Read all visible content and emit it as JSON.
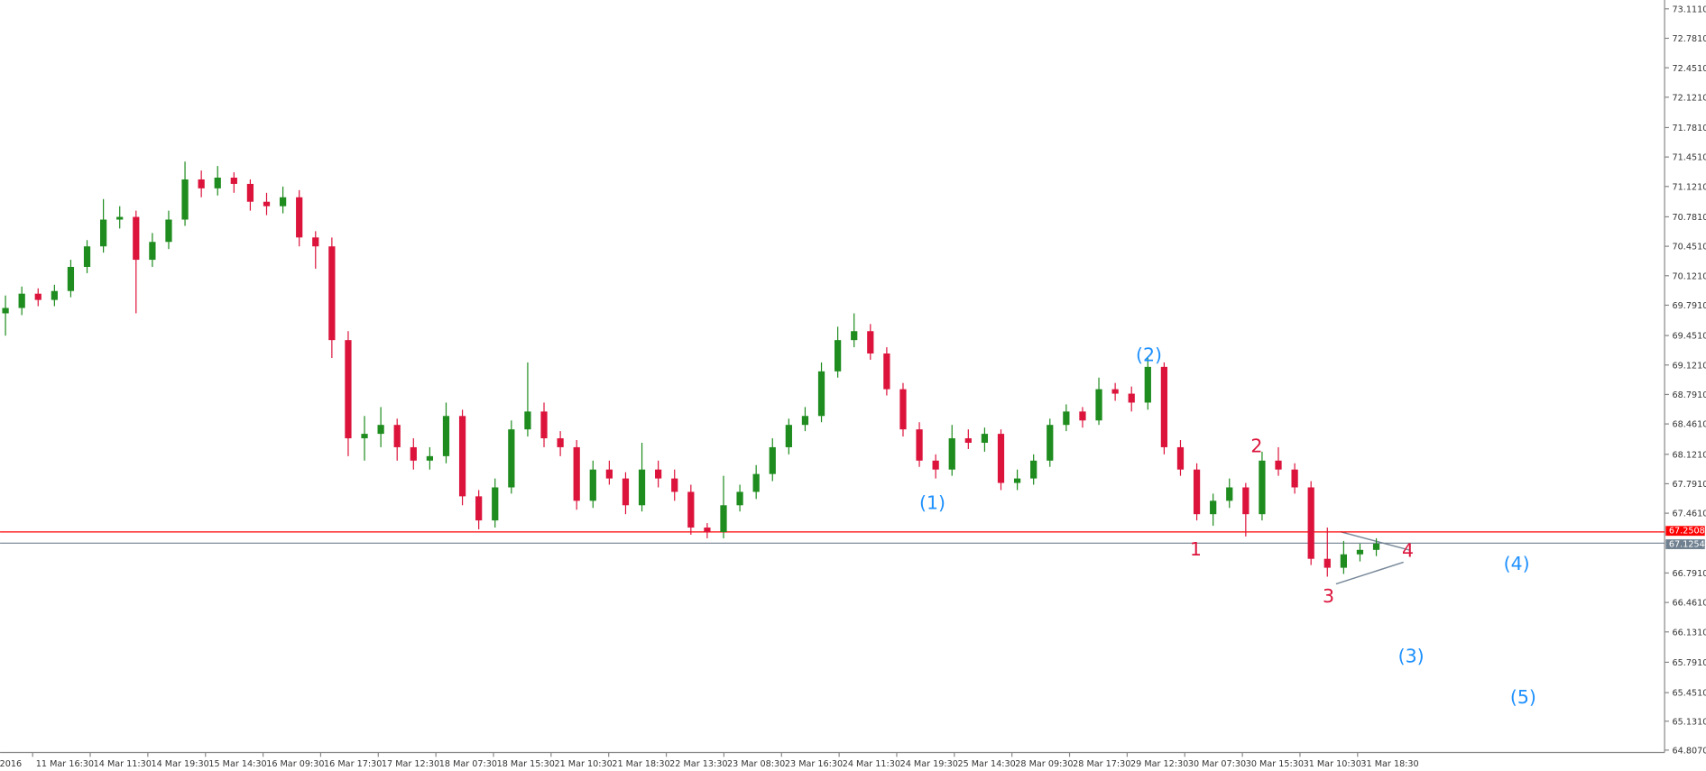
{
  "chart_data": {
    "type": "candlestick",
    "up_color": "#1e8c1e",
    "down_color": "#dc143c",
    "ylim": [
      64.78,
      73.21
    ],
    "yticks": [
      {
        "value": 73.111,
        "label": "73.1110"
      },
      {
        "value": 72.781,
        "label": "72.7810"
      },
      {
        "value": 72.451,
        "label": "72.4510"
      },
      {
        "value": 72.121,
        "label": "72.1210"
      },
      {
        "value": 71.781,
        "label": "71.7810"
      },
      {
        "value": 71.451,
        "label": "71.4510"
      },
      {
        "value": 71.121,
        "label": "71.1210"
      },
      {
        "value": 70.781,
        "label": "70.7810"
      },
      {
        "value": 70.451,
        "label": "70.4510"
      },
      {
        "value": 70.121,
        "label": "70.1210"
      },
      {
        "value": 69.791,
        "label": "69.7910"
      },
      {
        "value": 69.451,
        "label": "69.4510"
      },
      {
        "value": 69.121,
        "label": "69.1210"
      },
      {
        "value": 68.791,
        "label": "68.7910"
      },
      {
        "value": 68.461,
        "label": "68.4610"
      },
      {
        "value": 68.121,
        "label": "68.1210"
      },
      {
        "value": 67.791,
        "label": "67.7910"
      },
      {
        "value": 67.461,
        "label": "67.4610"
      },
      {
        "value": 66.791,
        "label": "66.7910"
      },
      {
        "value": 66.461,
        "label": "66.4610"
      },
      {
        "value": 66.131,
        "label": "66.1310"
      },
      {
        "value": 65.791,
        "label": "65.7910"
      },
      {
        "value": 65.451,
        "label": "65.4510"
      },
      {
        "value": 65.131,
        "label": "65.1310"
      },
      {
        "value": 64.807,
        "label": "64.8070"
      }
    ],
    "levels": [
      {
        "value": 67.2508,
        "color": "#ff0000"
      },
      {
        "value": 67.1254,
        "color": "#708090"
      }
    ],
    "x_labels": [
      "2016",
      "11 Mar 16:30",
      "14 Mar 11:30",
      "14 Mar 19:30",
      "15 Mar 14:30",
      "16 Mar 09:30",
      "16 Mar 17:30",
      "17 Mar 12:30",
      "18 Mar 07:30",
      "18 Mar 15:30",
      "21 Mar 10:30",
      "21 Mar 18:30",
      "22 Mar 13:30",
      "23 Mar 08:30",
      "23 Mar 16:30",
      "24 Mar 11:30",
      "24 Mar 19:30",
      "25 Mar 14:30",
      "28 Mar 09:30",
      "28 Mar 17:30",
      "29 Mar 12:30",
      "30 Mar 07:30",
      "30 Mar 15:30",
      "31 Mar 10:30",
      "31 Mar 18:30"
    ],
    "annotations": [
      {
        "text": "(1)",
        "color": "#1e90ff"
      },
      {
        "text": "(2)",
        "color": "#1e90ff"
      },
      {
        "text": "(3)",
        "color": "#1e90ff"
      },
      {
        "text": "(4)",
        "color": "#1e90ff"
      },
      {
        "text": "(5)",
        "color": "#1e90ff"
      },
      {
        "text": "1",
        "color": "#dc143c"
      },
      {
        "text": "2",
        "color": "#dc143c"
      },
      {
        "text": "3",
        "color": "#dc143c"
      },
      {
        "text": "4",
        "color": "#dc143c"
      }
    ],
    "candles": [
      [
        69.7,
        69.9,
        69.45,
        69.76
      ],
      [
        69.76,
        70.0,
        69.68,
        69.92
      ],
      [
        69.92,
        69.98,
        69.78,
        69.85
      ],
      [
        69.85,
        70.02,
        69.78,
        69.95
      ],
      [
        69.95,
        70.3,
        69.88,
        70.22
      ],
      [
        70.22,
        70.52,
        70.15,
        70.45
      ],
      [
        70.45,
        70.98,
        70.38,
        70.75
      ],
      [
        70.75,
        70.9,
        70.65,
        70.78
      ],
      [
        70.78,
        70.85,
        69.7,
        70.3
      ],
      [
        70.3,
        70.6,
        70.22,
        70.5
      ],
      [
        70.5,
        70.85,
        70.42,
        70.75
      ],
      [
        70.75,
        71.4,
        70.68,
        71.2
      ],
      [
        71.2,
        71.3,
        71.0,
        71.1
      ],
      [
        71.1,
        71.35,
        71.02,
        71.22
      ],
      [
        71.22,
        71.28,
        71.05,
        71.15
      ],
      [
        71.15,
        71.2,
        70.85,
        70.95
      ],
      [
        70.95,
        71.05,
        70.8,
        70.9
      ],
      [
        70.9,
        71.12,
        70.82,
        71.0
      ],
      [
        71.0,
        71.08,
        70.45,
        70.55
      ],
      [
        70.55,
        70.62,
        70.2,
        70.45
      ],
      [
        70.45,
        70.55,
        69.2,
        69.4
      ],
      [
        69.4,
        69.5,
        68.1,
        68.3
      ],
      [
        68.3,
        68.55,
        68.05,
        68.35
      ],
      [
        68.35,
        68.65,
        68.2,
        68.45
      ],
      [
        68.45,
        68.52,
        68.05,
        68.2
      ],
      [
        68.2,
        68.3,
        67.95,
        68.05
      ],
      [
        68.05,
        68.2,
        67.95,
        68.1
      ],
      [
        68.1,
        68.7,
        68.02,
        68.55
      ],
      [
        68.55,
        68.62,
        67.55,
        67.65
      ],
      [
        67.65,
        67.72,
        67.28,
        67.38
      ],
      [
        67.38,
        67.85,
        67.3,
        67.75
      ],
      [
        67.75,
        68.5,
        67.68,
        68.4
      ],
      [
        68.4,
        69.15,
        68.32,
        68.6
      ],
      [
        68.6,
        68.7,
        68.2,
        68.3
      ],
      [
        68.3,
        68.38,
        68.1,
        68.2
      ],
      [
        68.2,
        68.28,
        67.5,
        67.6
      ],
      [
        67.6,
        68.05,
        67.52,
        67.95
      ],
      [
        67.95,
        68.05,
        67.78,
        67.85
      ],
      [
        67.85,
        67.92,
        67.45,
        67.55
      ],
      [
        67.55,
        68.25,
        67.48,
        67.95
      ],
      [
        67.95,
        68.05,
        67.75,
        67.85
      ],
      [
        67.85,
        67.95,
        67.6,
        67.7
      ],
      [
        67.7,
        67.78,
        67.22,
        67.3
      ],
      [
        67.3,
        67.35,
        67.18,
        67.25
      ],
      [
        67.25,
        67.88,
        67.18,
        67.55
      ],
      [
        67.55,
        67.78,
        67.48,
        67.7
      ],
      [
        67.7,
        68.0,
        67.62,
        67.9
      ],
      [
        67.9,
        68.3,
        67.82,
        68.2
      ],
      [
        68.2,
        68.52,
        68.12,
        68.45
      ],
      [
        68.45,
        68.65,
        68.38,
        68.55
      ],
      [
        68.55,
        69.15,
        68.48,
        69.05
      ],
      [
        69.05,
        69.55,
        68.98,
        69.4
      ],
      [
        69.4,
        69.7,
        69.32,
        69.5
      ],
      [
        69.5,
        69.58,
        69.18,
        69.25
      ],
      [
        69.25,
        69.32,
        68.78,
        68.85
      ],
      [
        68.85,
        68.92,
        68.32,
        68.4
      ],
      [
        68.4,
        68.48,
        67.98,
        68.05
      ],
      [
        68.05,
        68.12,
        67.85,
        67.95
      ],
      [
        67.95,
        68.45,
        67.88,
        68.3
      ],
      [
        68.3,
        68.4,
        68.18,
        68.25
      ],
      [
        68.25,
        68.42,
        68.15,
        68.35
      ],
      [
        68.35,
        68.4,
        67.72,
        67.8
      ],
      [
        67.8,
        67.95,
        67.72,
        67.85
      ],
      [
        67.85,
        68.12,
        67.78,
        68.05
      ],
      [
        68.05,
        68.52,
        67.98,
        68.45
      ],
      [
        68.45,
        68.68,
        68.38,
        68.6
      ],
      [
        68.6,
        68.65,
        68.42,
        68.5
      ],
      [
        68.5,
        68.98,
        68.45,
        68.85
      ],
      [
        68.85,
        68.92,
        68.72,
        68.8
      ],
      [
        68.8,
        68.88,
        68.6,
        68.7
      ],
      [
        68.7,
        69.2,
        68.62,
        69.1
      ],
      [
        69.1,
        69.15,
        68.12,
        68.2
      ],
      [
        68.2,
        68.28,
        67.88,
        67.95
      ],
      [
        67.95,
        68.02,
        67.38,
        67.45
      ],
      [
        67.45,
        67.68,
        67.32,
        67.6
      ],
      [
        67.6,
        67.85,
        67.52,
        67.75
      ],
      [
        67.75,
        67.8,
        67.2,
        67.45
      ],
      [
        67.45,
        68.15,
        67.38,
        68.05
      ],
      [
        68.05,
        68.2,
        67.88,
        67.95
      ],
      [
        67.95,
        68.02,
        67.68,
        67.75
      ],
      [
        67.75,
        67.82,
        66.88,
        66.95
      ],
      [
        66.95,
        67.3,
        66.75,
        66.85
      ],
      [
        66.85,
        67.15,
        66.78,
        67.0
      ],
      [
        67.0,
        67.12,
        66.92,
        67.05
      ],
      [
        67.05,
        67.18,
        66.98,
        67.12
      ]
    ]
  }
}
